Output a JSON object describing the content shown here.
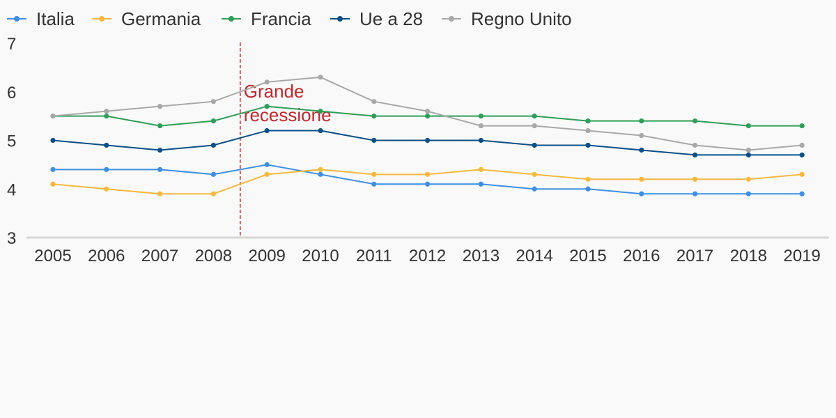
{
  "chart_data": {
    "type": "line",
    "x": [
      "2005",
      "2006",
      "2007",
      "2008",
      "2009",
      "2010",
      "2011",
      "2012",
      "2013",
      "2014",
      "2015",
      "2016",
      "2017",
      "2018",
      "2019"
    ],
    "ylim": [
      3,
      7
    ],
    "yticks": [
      "3",
      "4",
      "5",
      "6",
      "7"
    ],
    "grid": false,
    "legend_position": "top-left",
    "series": [
      {
        "name": "Italia",
        "color": "#3d8fe3",
        "values": [
          4.4,
          4.4,
          4.4,
          4.3,
          4.5,
          4.3,
          4.1,
          4.1,
          4.1,
          4.0,
          4.0,
          3.9,
          3.9,
          3.9,
          3.9
        ]
      },
      {
        "name": "Germania",
        "color": "#f7b83c",
        "values": [
          4.1,
          4.0,
          3.9,
          3.9,
          4.3,
          4.4,
          4.3,
          4.3,
          4.4,
          4.3,
          4.2,
          4.2,
          4.2,
          4.2,
          4.3
        ]
      },
      {
        "name": "Francia",
        "color": "#2e9e57",
        "values": [
          5.5,
          5.5,
          5.3,
          5.4,
          5.7,
          5.6,
          5.5,
          5.5,
          5.5,
          5.5,
          5.4,
          5.4,
          5.4,
          5.3,
          5.3
        ]
      },
      {
        "name": "Ue a 28",
        "color": "#0a4f87",
        "values": [
          5.0,
          4.9,
          4.8,
          4.9,
          5.2,
          5.2,
          5.0,
          5.0,
          5.0,
          4.9,
          4.9,
          4.8,
          4.7,
          4.7,
          4.7
        ]
      },
      {
        "name": "Regno Unito",
        "color": "#a8a8a8",
        "values": [
          5.5,
          5.6,
          5.7,
          5.8,
          6.2,
          6.3,
          5.8,
          5.6,
          5.3,
          5.3,
          5.2,
          5.1,
          4.9,
          4.8,
          4.9
        ]
      }
    ],
    "annotation": {
      "text_lines": [
        "Grande",
        "recessione"
      ],
      "x_position": 2008.5,
      "color": "#c0272d"
    }
  }
}
